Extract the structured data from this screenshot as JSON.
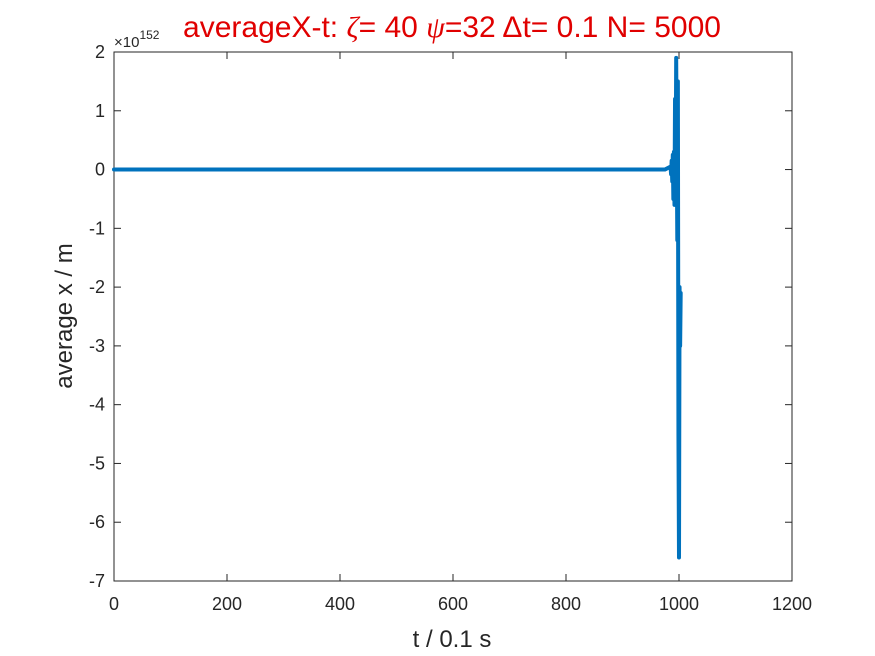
{
  "chart_data": {
    "type": "line",
    "title_parts": {
      "prefix": "averageX-t:  ",
      "zeta_symbol": "ζ",
      "zeta_text": "= 40 ",
      "psi_symbol": "ψ",
      "psi_text": "=32 ",
      "delta_symbol": "Δ",
      "dt_text": "t= 0.1 N= 5000"
    },
    "xlabel": "t / 0.1 s",
    "ylabel": "average x / m",
    "y_exponent_base": "×10",
    "y_exponent": "152",
    "xlim": [
      0,
      1200
    ],
    "ylim": [
      -7,
      2
    ],
    "xticks": [
      0,
      200,
      400,
      600,
      800,
      1000,
      1200
    ],
    "yticks": [
      -7,
      -6,
      -5,
      -4,
      -3,
      -2,
      -1,
      0,
      1,
      2
    ],
    "grid": false,
    "line_color": "#0072bd",
    "title_color": "#e00000",
    "series": [
      {
        "x": [
          0,
          200,
          400,
          600,
          800,
          975,
          985,
          986,
          987,
          988,
          989,
          990,
          991,
          992,
          993,
          994,
          995,
          996,
          997,
          998,
          999,
          1000,
          1001,
          1002,
          1003
        ],
        "y": [
          0,
          0,
          0,
          0,
          0,
          0,
          0.05,
          -0.08,
          0.15,
          -0.2,
          0.25,
          -0.5,
          0.3,
          -0.6,
          1.2,
          -0.4,
          1.9,
          0.4,
          -1.2,
          1.5,
          -4.5,
          -6.6,
          -2.0,
          -3.0,
          -2.1
        ]
      }
    ]
  }
}
